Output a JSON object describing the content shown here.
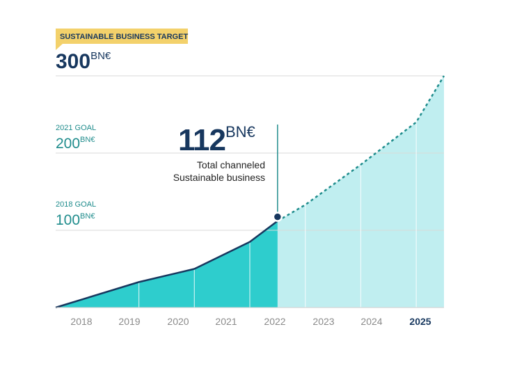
{
  "target_badge": "SUSTAINABLE BUSINESS TARGET",
  "target_value": "300",
  "unit": "BN€",
  "goal_2021": {
    "label": "2021 GOAL",
    "value": "200",
    "unit": "BN€"
  },
  "goal_2018": {
    "label": "2018 GOAL",
    "value": "100",
    "unit": "BN€"
  },
  "current": {
    "value": "112",
    "unit": "BN€",
    "caption_line1": "Total channeled",
    "caption_line2": "Sustainable business"
  },
  "colors": {
    "navy": "#17375e",
    "teal": "#2ecdcd",
    "teal_light": "#c0eef0",
    "teal_dark": "#1f8c8c",
    "badge": "#f3d16b",
    "grid": "#d9d9d9",
    "tick": "#8a8a8a"
  },
  "chart_data": {
    "type": "area",
    "x_categories": [
      "2018",
      "2019",
      "2020",
      "2021",
      "2022",
      "2023",
      "2024",
      "2025"
    ],
    "highlight_category": "2025",
    "ylim": [
      0,
      300
    ],
    "y_gridlines": [
      100,
      200,
      300
    ],
    "series": [
      {
        "style": "actual",
        "points": [
          [
            2018,
            0
          ],
          [
            2018.5,
            11
          ],
          [
            2019.5,
            33
          ],
          [
            2020.5,
            50
          ],
          [
            2021.5,
            85
          ],
          [
            2022,
            112
          ]
        ]
      },
      {
        "style": "projected",
        "points": [
          [
            2022,
            112
          ],
          [
            2022.5,
            133
          ],
          [
            2023.5,
            185
          ],
          [
            2024.5,
            240
          ],
          [
            2025,
            300
          ]
        ]
      }
    ]
  }
}
